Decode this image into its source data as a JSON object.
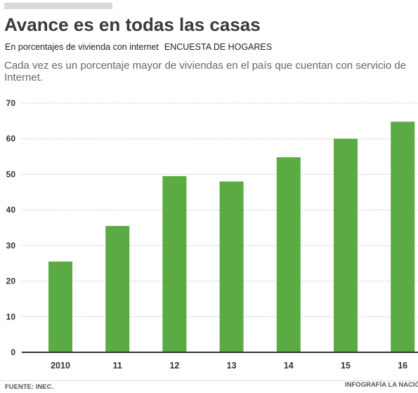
{
  "header": {
    "title": "Avance es en todas las casas",
    "subtitle": "En porcentajes de vivienda con internet",
    "subtitle_tag": "ENCUESTA DE HOGARES",
    "description": "Cada vez es un porcentaje mayor de viviendas en el país que cuentan con servicio de Internet."
  },
  "footer": {
    "source": "FUENTE: INEC.",
    "credit": "INFOGRAFÍA LA NACIÓN"
  },
  "colors": {
    "bar": "#5aab44",
    "grid": "#bbbbbb",
    "axis": "#333333"
  },
  "chart_data": {
    "type": "bar",
    "categories": [
      "2010",
      "11",
      "12",
      "13",
      "14",
      "15",
      "16"
    ],
    "values": [
      25.5,
      35.5,
      49.5,
      48,
      54.8,
      60,
      64.8
    ],
    "ylim": [
      0,
      70
    ],
    "yticks": [
      "0",
      "10",
      "20",
      "30",
      "40",
      "50",
      "60",
      "70"
    ],
    "grid": true,
    "legend": "none"
  }
}
